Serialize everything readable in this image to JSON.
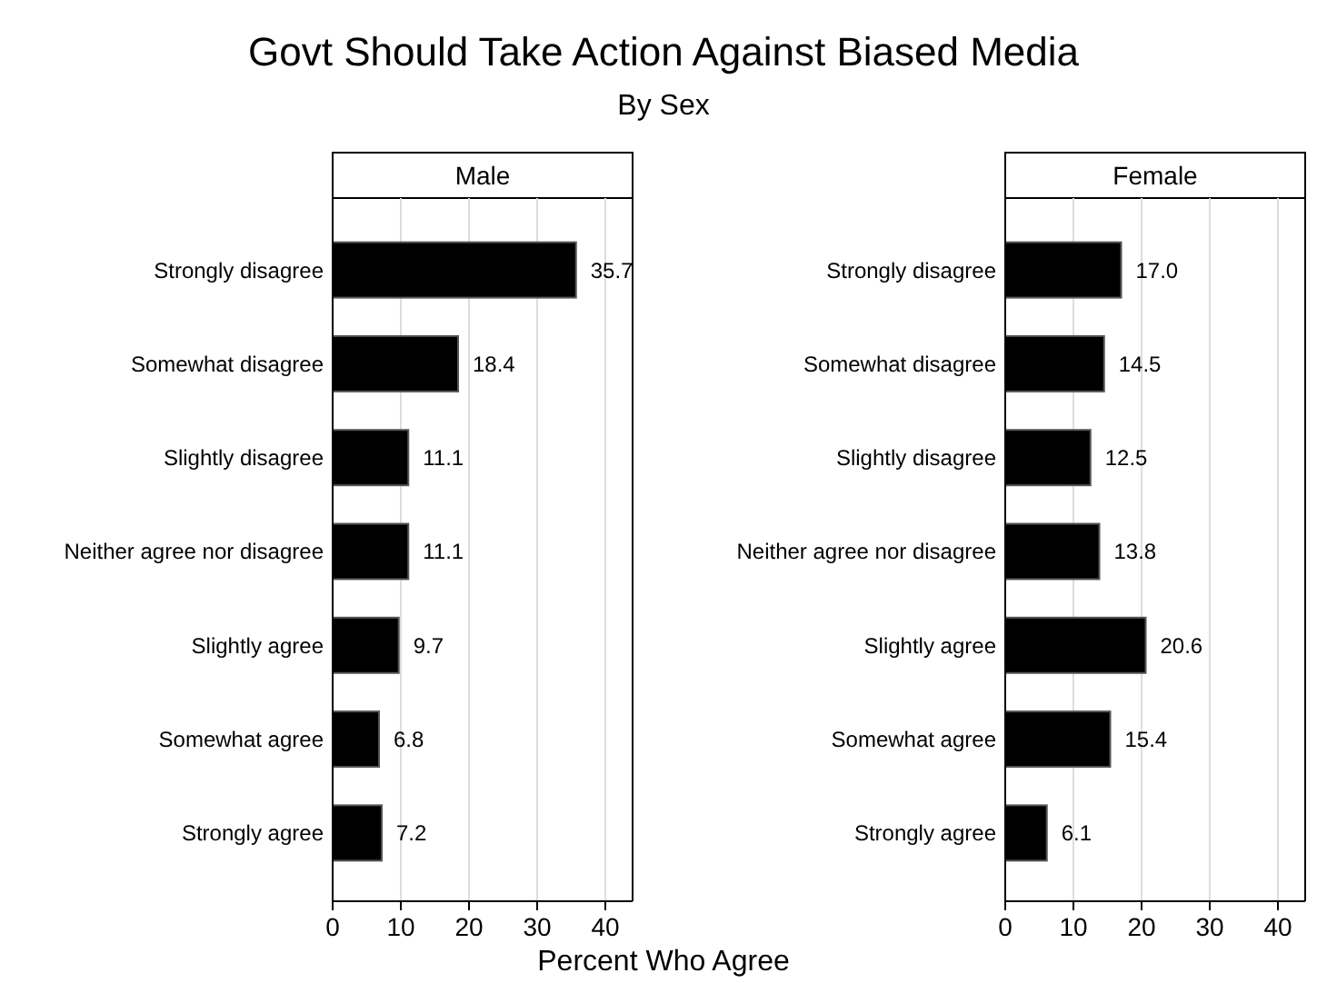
{
  "chart_data": [
    {
      "type": "bar",
      "orientation": "horizontal",
      "title": "Male",
      "xlabel": "Percent Who Agree",
      "annotations": [
        "Govt Should Take Action Against Biased Media",
        "By Sex"
      ],
      "categories": [
        "Strongly disagree",
        "Somewhat disagree",
        "Slightly disagree",
        "Neither agree nor disagree",
        "Slightly agree",
        "Somewhat agree",
        "Strongly agree"
      ],
      "values": [
        35.7,
        18.4,
        11.1,
        11.1,
        9.7,
        6.8,
        7.2
      ],
      "value_labels": [
        "35.7",
        "18.4",
        "11.1",
        "11.1",
        "9.7",
        "6.8",
        "7.2"
      ],
      "color": "#000000",
      "xlim": [
        0,
        44
      ],
      "xticks": [
        0,
        10,
        20,
        30,
        40
      ],
      "grid": "x"
    },
    {
      "type": "bar",
      "orientation": "horizontal",
      "title": "Female",
      "categories": [
        "Strongly disagree",
        "Somewhat disagree",
        "Slightly disagree",
        "Neither agree nor disagree",
        "Slightly agree",
        "Somewhat agree",
        "Strongly agree"
      ],
      "values": [
        17.0,
        14.5,
        12.5,
        13.8,
        20.6,
        15.4,
        6.1
      ],
      "value_labels": [
        "17.0",
        "14.5",
        "12.5",
        "13.8",
        "20.6",
        "15.4",
        "6.1"
      ],
      "color": "#000000",
      "xlim": [
        0,
        44
      ],
      "xticks": [
        0,
        10,
        20,
        30,
        40
      ],
      "grid": "x"
    }
  ]
}
